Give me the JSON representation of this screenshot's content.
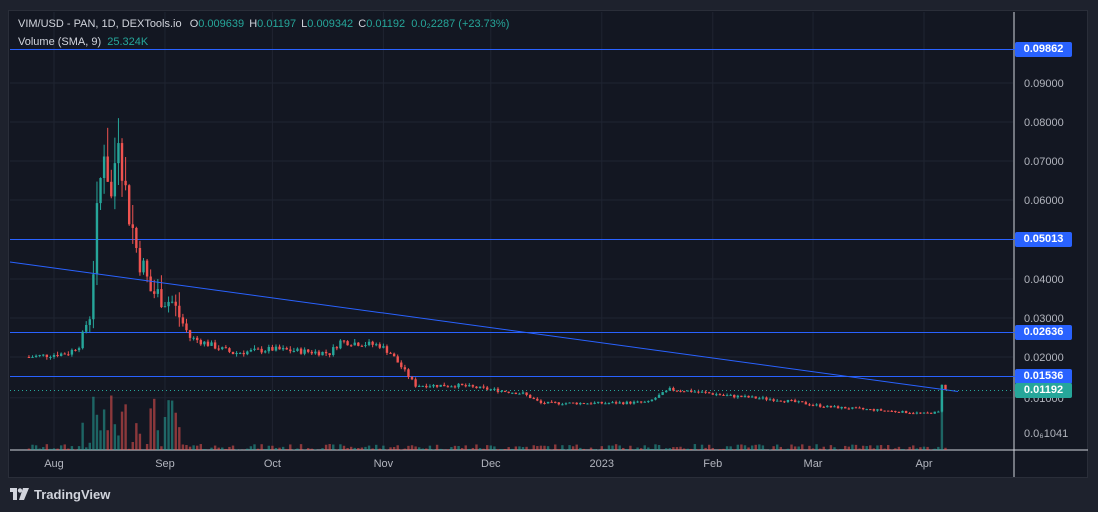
{
  "header": {
    "symbol": "VIM/USD - PAN, 1D, DEXTools.io",
    "open_label": "O",
    "open": "0.009639",
    "high_label": "H",
    "high": "0.01197",
    "low_label": "L",
    "low": "0.009342",
    "close_label": "C",
    "close": "0.01192",
    "change": "0.0₂2287 (+23.73%)",
    "volume_label": "Volume (SMA, 9)",
    "volume_value": "25.324K"
  },
  "footer": {
    "brand": "TradingView"
  },
  "colors": {
    "background": "#131722",
    "up": "#26a69a",
    "down": "#ef5350",
    "level_line": "#2962ff",
    "trendline": "#2962ff",
    "last_price": "#26a69a"
  },
  "price_tags": [
    {
      "label": "0.09862",
      "kind": "level"
    },
    {
      "label": "0.05013",
      "kind": "level"
    },
    {
      "label": "0.02636",
      "kind": "level"
    },
    {
      "label": "0.01536",
      "kind": "level"
    },
    {
      "label": "0.01192",
      "kind": "last"
    }
  ],
  "chart_data": {
    "type": "candlestick",
    "x_ticks": [
      "Aug",
      "Sep",
      "Oct",
      "Nov",
      "Dec",
      "2023",
      "Feb",
      "Mar",
      "Apr"
    ],
    "y_ticks": [
      "0.09000",
      "0.08000",
      "0.07000",
      "0.06000",
      "0.04000",
      "0.03000",
      "0.02000",
      "0.01000",
      "0.0₆1041"
    ],
    "horizontal_levels": [
      0.09862,
      0.05013,
      0.02636,
      0.01536
    ],
    "last_price": 0.01192,
    "trendline": {
      "from": [
        "2022-07-25",
        0.0437
      ],
      "to": [
        "2023-04-08",
        0.0118
      ]
    },
    "series": [
      {
        "date": "2022-07-25",
        "value": 0.02
      },
      {
        "date": "2022-08-05",
        "value": 0.021
      },
      {
        "date": "2022-08-08",
        "value": 0.023
      },
      {
        "date": "2022-08-11",
        "value": 0.031
      },
      {
        "date": "2022-08-13",
        "value": 0.055
      },
      {
        "date": "2022-08-15",
        "value": 0.075
      },
      {
        "date": "2022-08-17",
        "value": 0.06
      },
      {
        "date": "2022-08-19",
        "value": 0.08
      },
      {
        "date": "2022-08-21",
        "value": 0.062
      },
      {
        "date": "2022-08-24",
        "value": 0.048
      },
      {
        "date": "2022-08-28",
        "value": 0.037
      },
      {
        "date": "2022-09-03",
        "value": 0.034
      },
      {
        "date": "2022-09-08",
        "value": 0.025
      },
      {
        "date": "2022-09-20",
        "value": 0.021
      },
      {
        "date": "2022-10-01",
        "value": 0.022
      },
      {
        "date": "2022-10-17",
        "value": 0.021
      },
      {
        "date": "2022-10-20",
        "value": 0.024
      },
      {
        "date": "2022-10-31",
        "value": 0.023
      },
      {
        "date": "2022-11-03",
        "value": 0.021
      },
      {
        "date": "2022-11-10",
        "value": 0.013
      },
      {
        "date": "2022-11-22",
        "value": 0.013
      },
      {
        "date": "2022-12-01",
        "value": 0.012
      },
      {
        "date": "2022-12-10",
        "value": 0.011
      },
      {
        "date": "2022-12-15",
        "value": 0.0088
      },
      {
        "date": "2023-01-01",
        "value": 0.0088
      },
      {
        "date": "2023-01-14",
        "value": 0.009
      },
      {
        "date": "2023-01-20",
        "value": 0.012
      },
      {
        "date": "2023-01-27",
        "value": 0.0115
      },
      {
        "date": "2023-02-05",
        "value": 0.0105
      },
      {
        "date": "2023-02-20",
        "value": 0.0095
      },
      {
        "date": "2023-03-05",
        "value": 0.008
      },
      {
        "date": "2023-03-20",
        "value": 0.0072
      },
      {
        "date": "2023-04-01",
        "value": 0.0065
      },
      {
        "date": "2023-04-05",
        "value": 0.0068
      },
      {
        "date": "2023-04-06",
        "value": 0.0135
      },
      {
        "date": "2023-04-07",
        "value": 0.0119
      }
    ],
    "volume": "25.324K"
  }
}
